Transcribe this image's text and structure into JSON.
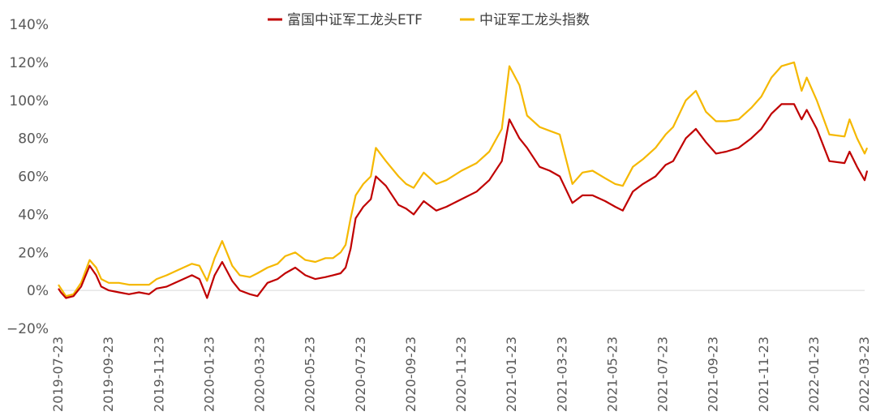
{
  "chart_data": {
    "type": "line",
    "title": "",
    "xlabel": "",
    "ylabel": "",
    "ylim": [
      -20,
      140
    ],
    "yticks": [
      -20,
      0,
      20,
      40,
      60,
      80,
      100,
      120,
      140
    ],
    "y_tick_labels": [
      "−20%",
      "0%",
      "20%",
      "40%",
      "60%",
      "80%",
      "100%",
      "120%",
      "140%"
    ],
    "y_format": "percent",
    "x_tick_labels": [
      "2019-07-23",
      "2019-09-23",
      "2019-11-23",
      "2020-01-23",
      "2020-03-23",
      "2020-05-23",
      "2020-07-23",
      "2020-09-23",
      "2020-11-23",
      "2021-01-23",
      "2021-03-23",
      "2021-05-23",
      "2021-07-23",
      "2021-09-23",
      "2021-11-23",
      "2022-01-23",
      "2022-03-23"
    ],
    "legend_position": "top-center",
    "series": [
      {
        "name": "富国中证军工龙头ETF",
        "color": "#C00000",
        "points": [
          [
            0,
            1
          ],
          [
            0.05,
            -1
          ],
          [
            0.15,
            -4
          ],
          [
            0.3,
            -3
          ],
          [
            0.45,
            2
          ],
          [
            0.62,
            13
          ],
          [
            0.75,
            8
          ],
          [
            0.85,
            2
          ],
          [
            1.0,
            0
          ],
          [
            1.2,
            -1
          ],
          [
            1.4,
            -2
          ],
          [
            1.6,
            -1
          ],
          [
            1.8,
            -2
          ],
          [
            1.95,
            1
          ],
          [
            2.15,
            2
          ],
          [
            2.4,
            5
          ],
          [
            2.65,
            8
          ],
          [
            2.8,
            6
          ],
          [
            2.95,
            -4
          ],
          [
            3.1,
            8
          ],
          [
            3.25,
            15
          ],
          [
            3.45,
            5
          ],
          [
            3.6,
            0
          ],
          [
            3.8,
            -2
          ],
          [
            3.95,
            -3
          ],
          [
            4.15,
            4
          ],
          [
            4.35,
            6
          ],
          [
            4.5,
            9
          ],
          [
            4.7,
            12
          ],
          [
            4.9,
            8
          ],
          [
            5.1,
            6
          ],
          [
            5.3,
            7
          ],
          [
            5.45,
            8
          ],
          [
            5.6,
            9
          ],
          [
            5.7,
            12
          ],
          [
            5.8,
            22
          ],
          [
            5.9,
            38
          ],
          [
            6.05,
            44
          ],
          [
            6.2,
            48
          ],
          [
            6.3,
            60
          ],
          [
            6.5,
            55
          ],
          [
            6.75,
            45
          ],
          [
            6.9,
            43
          ],
          [
            7.05,
            40
          ],
          [
            7.25,
            47
          ],
          [
            7.5,
            42
          ],
          [
            7.7,
            44
          ],
          [
            8.0,
            48
          ],
          [
            8.3,
            52
          ],
          [
            8.55,
            58
          ],
          [
            8.8,
            68
          ],
          [
            8.95,
            90
          ],
          [
            9.15,
            80
          ],
          [
            9.3,
            75
          ],
          [
            9.55,
            65
          ],
          [
            9.75,
            63
          ],
          [
            9.95,
            60
          ],
          [
            10.2,
            46
          ],
          [
            10.4,
            50
          ],
          [
            10.6,
            50
          ],
          [
            10.85,
            47
          ],
          [
            11.05,
            44
          ],
          [
            11.2,
            42
          ],
          [
            11.4,
            52
          ],
          [
            11.6,
            56
          ],
          [
            11.85,
            60
          ],
          [
            12.05,
            66
          ],
          [
            12.2,
            68
          ],
          [
            12.45,
            80
          ],
          [
            12.65,
            85
          ],
          [
            12.85,
            78
          ],
          [
            13.05,
            72
          ],
          [
            13.25,
            73
          ],
          [
            13.5,
            75
          ],
          [
            13.75,
            80
          ],
          [
            13.95,
            85
          ],
          [
            14.15,
            93
          ],
          [
            14.35,
            98
          ],
          [
            14.6,
            98
          ],
          [
            14.75,
            90
          ],
          [
            14.85,
            95
          ],
          [
            15.05,
            85
          ],
          [
            15.3,
            68
          ],
          [
            15.6,
            67
          ],
          [
            15.7,
            73
          ],
          [
            15.85,
            65
          ],
          [
            16.0,
            58
          ],
          [
            16.05,
            63
          ]
        ]
      },
      {
        "name": "中证军工龙头指数",
        "color": "#F5B800",
        "points": [
          [
            0,
            3
          ],
          [
            0.05,
            1
          ],
          [
            0.15,
            -3
          ],
          [
            0.3,
            -2
          ],
          [
            0.45,
            4
          ],
          [
            0.62,
            16
          ],
          [
            0.75,
            12
          ],
          [
            0.85,
            6
          ],
          [
            1.0,
            4
          ],
          [
            1.2,
            4
          ],
          [
            1.4,
            3
          ],
          [
            1.6,
            3
          ],
          [
            1.8,
            3
          ],
          [
            1.95,
            6
          ],
          [
            2.15,
            8
          ],
          [
            2.4,
            11
          ],
          [
            2.65,
            14
          ],
          [
            2.8,
            13
          ],
          [
            2.95,
            5
          ],
          [
            3.1,
            17
          ],
          [
            3.25,
            26
          ],
          [
            3.45,
            13
          ],
          [
            3.6,
            8
          ],
          [
            3.8,
            7
          ],
          [
            3.95,
            9
          ],
          [
            4.15,
            12
          ],
          [
            4.35,
            14
          ],
          [
            4.5,
            18
          ],
          [
            4.7,
            20
          ],
          [
            4.9,
            16
          ],
          [
            5.1,
            15
          ],
          [
            5.3,
            17
          ],
          [
            5.45,
            17
          ],
          [
            5.6,
            20
          ],
          [
            5.7,
            24
          ],
          [
            5.8,
            38
          ],
          [
            5.9,
            50
          ],
          [
            6.05,
            56
          ],
          [
            6.2,
            60
          ],
          [
            6.3,
            75
          ],
          [
            6.5,
            68
          ],
          [
            6.75,
            60
          ],
          [
            6.9,
            56
          ],
          [
            7.05,
            54
          ],
          [
            7.25,
            62
          ],
          [
            7.5,
            56
          ],
          [
            7.7,
            58
          ],
          [
            8.0,
            63
          ],
          [
            8.3,
            67
          ],
          [
            8.55,
            73
          ],
          [
            8.8,
            85
          ],
          [
            8.95,
            118
          ],
          [
            9.15,
            108
          ],
          [
            9.3,
            92
          ],
          [
            9.55,
            86
          ],
          [
            9.75,
            84
          ],
          [
            9.95,
            82
          ],
          [
            10.2,
            56
          ],
          [
            10.4,
            62
          ],
          [
            10.6,
            63
          ],
          [
            10.85,
            59
          ],
          [
            11.05,
            56
          ],
          [
            11.2,
            55
          ],
          [
            11.4,
            65
          ],
          [
            11.6,
            69
          ],
          [
            11.85,
            75
          ],
          [
            12.05,
            82
          ],
          [
            12.2,
            86
          ],
          [
            12.45,
            100
          ],
          [
            12.65,
            105
          ],
          [
            12.85,
            94
          ],
          [
            13.05,
            89
          ],
          [
            13.25,
            89
          ],
          [
            13.5,
            90
          ],
          [
            13.75,
            96
          ],
          [
            13.95,
            102
          ],
          [
            14.15,
            112
          ],
          [
            14.35,
            118
          ],
          [
            14.6,
            120
          ],
          [
            14.75,
            105
          ],
          [
            14.85,
            112
          ],
          [
            15.05,
            100
          ],
          [
            15.3,
            82
          ],
          [
            15.6,
            81
          ],
          [
            15.7,
            90
          ],
          [
            15.85,
            80
          ],
          [
            16.0,
            72
          ],
          [
            16.05,
            75
          ]
        ]
      }
    ]
  }
}
